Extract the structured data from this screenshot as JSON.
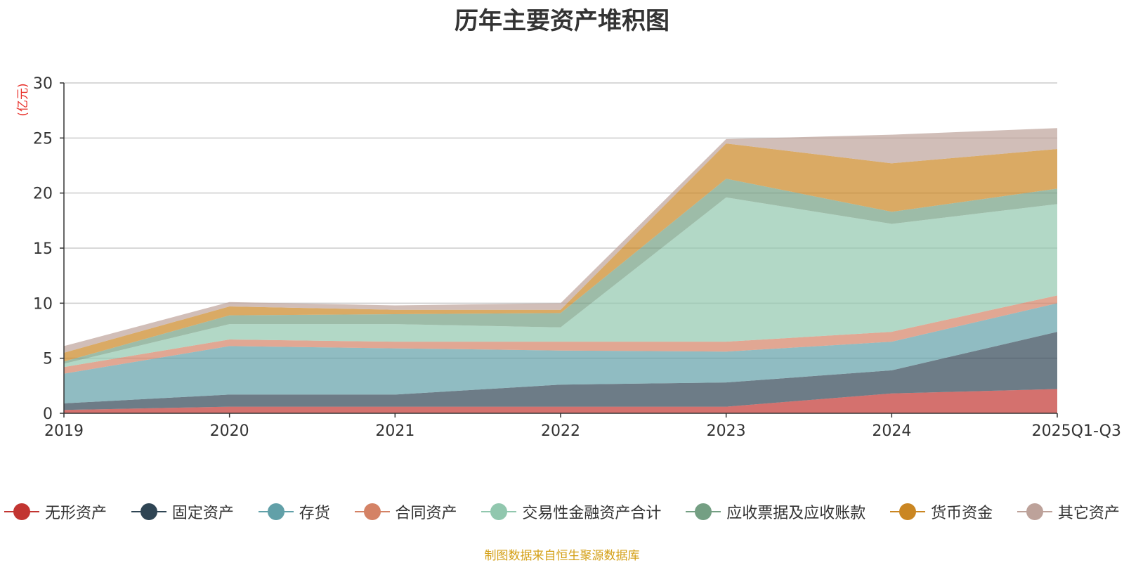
{
  "chart_data": {
    "type": "area",
    "stacked": true,
    "title": "历年主要资产堆积图",
    "ylabel": "(亿元)",
    "xlabel": "",
    "categories": [
      "2019",
      "2020",
      "2021",
      "2022",
      "2023",
      "2024",
      "2025Q1-Q3"
    ],
    "ylim": [
      0,
      30
    ],
    "yticks": [
      0,
      5,
      10,
      15,
      20,
      25,
      30
    ],
    "grid": true,
    "legend_position": "bottom",
    "series": [
      {
        "name": "无形资产",
        "color": "#c23531",
        "values": [
          0.3,
          0.6,
          0.6,
          0.6,
          0.6,
          1.8,
          2.2
        ]
      },
      {
        "name": "固定资产",
        "color": "#2f4554",
        "values": [
          0.6,
          1.1,
          1.1,
          2.0,
          2.2,
          2.1,
          5.2
        ]
      },
      {
        "name": "存货",
        "color": "#61a0a8",
        "values": [
          2.7,
          4.4,
          4.2,
          3.1,
          2.8,
          2.6,
          2.6
        ]
      },
      {
        "name": "合同资产",
        "color": "#d48265",
        "values": [
          0.6,
          0.6,
          0.6,
          0.8,
          0.9,
          0.9,
          0.7
        ]
      },
      {
        "name": "交易性金融资产合计",
        "color": "#91c7ae",
        "values": [
          0.3,
          1.4,
          1.6,
          1.3,
          13.1,
          9.8,
          8.3
        ]
      },
      {
        "name": "应收票据及应收账款",
        "color": "#749f83",
        "values": [
          0.2,
          0.8,
          0.9,
          1.3,
          1.7,
          1.1,
          1.4
        ]
      },
      {
        "name": "货币资金",
        "color": "#ca8622",
        "values": [
          0.8,
          0.8,
          0.4,
          0.3,
          3.2,
          4.4,
          3.6
        ]
      },
      {
        "name": "其它资产",
        "color": "#bda29a",
        "values": [
          0.6,
          0.4,
          0.4,
          0.6,
          0.4,
          2.6,
          1.9
        ]
      }
    ]
  },
  "source_note": "制图数据来自恒生聚源数据库"
}
